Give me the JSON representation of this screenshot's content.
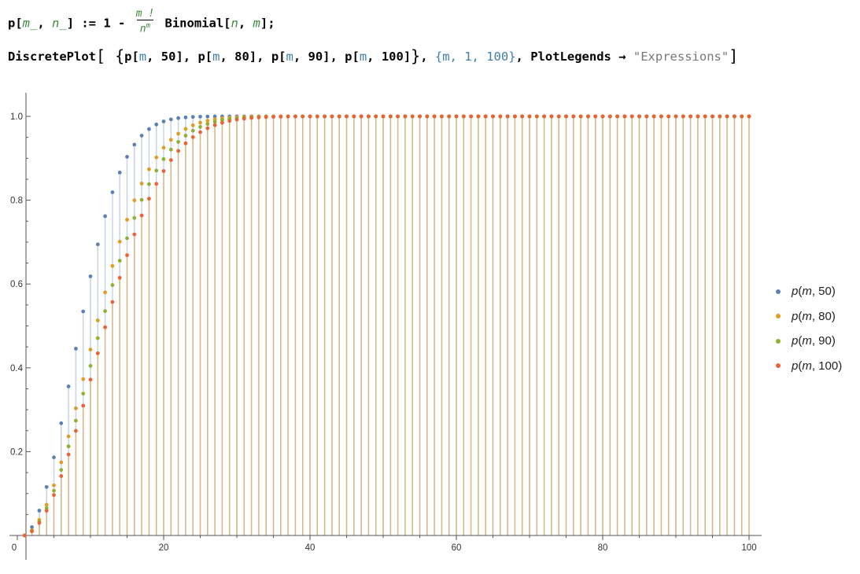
{
  "code": {
    "line1": {
      "lhs_p": "p[",
      "lhs_m": "m_",
      "lhs_sep": ", ",
      "lhs_n": "n_",
      "lhs_close": "] := 1 - ",
      "frac_num": "m !",
      "frac_den_base": "n",
      "frac_den_exp": "m",
      "rhs_fn": " Binomial[",
      "rhs_n": "n",
      "rhs_sep": ", ",
      "rhs_m": "m",
      "rhs_close": "];"
    },
    "line2": {
      "fn": "DiscretePlot",
      "open": "[",
      "brace_open": " {",
      "call1_a": "p[",
      "call1_m": "m",
      "call1_b": ", 50], ",
      "call2_a": "p[",
      "call2_m": "m",
      "call2_b": ", 80], ",
      "call3_a": "p[",
      "call3_m": "m",
      "call3_b": ", 90], ",
      "call4_a": "p[",
      "call4_m": "m",
      "call4_b": ", 100]",
      "brace_close": "}",
      "sep": ", ",
      "iter": "{m, 1, 100}",
      "sep2": ", ",
      "opt": "PlotLegends",
      "arrow": " → ",
      "opt_val": "\"Expressions\"",
      "close": "]"
    }
  },
  "chart_data": {
    "type": "scatter",
    "style": "discrete-plot-with-stems",
    "x_range": [
      1,
      100
    ],
    "xlim": [
      0,
      100
    ],
    "ylim": [
      0,
      1.0
    ],
    "x_ticks": [
      0,
      20,
      40,
      60,
      80,
      100
    ],
    "y_ticks": [
      0.2,
      0.4,
      0.6,
      0.8,
      1.0
    ],
    "x_tick_labels": [
      "0",
      "20",
      "40",
      "60",
      "80",
      "100"
    ],
    "y_tick_labels": [
      "0.2",
      "0.4",
      "0.6",
      "0.8",
      "1.0"
    ],
    "legend_position": "right",
    "series": [
      {
        "name_prefix": "p(",
        "name_var": "m",
        "name_suffix": ", 50)",
        "n": 50,
        "color": "#5e81b5"
      },
      {
        "name_prefix": "p(",
        "name_var": "m",
        "name_suffix": ", 80)",
        "n": 80,
        "color": "#e19c24"
      },
      {
        "name_prefix": "p(",
        "name_var": "m",
        "name_suffix": ", 90)",
        "n": 90,
        "color": "#8fb032"
      },
      {
        "name_prefix": "p(",
        "name_var": "m",
        "name_suffix": ", 100)",
        "n": 100,
        "color": "#eb6235"
      }
    ],
    "stem_color": "#d4b88a",
    "stem_color_light": "#c8d4e4"
  }
}
